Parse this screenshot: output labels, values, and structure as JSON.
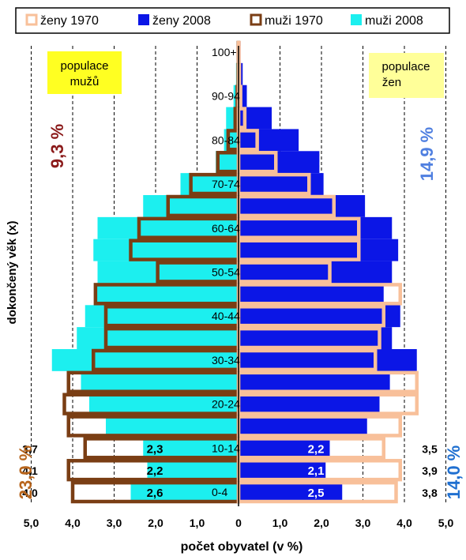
{
  "chart_data": {
    "type": "bar",
    "subtype": "population-pyramid",
    "xlabel": "počet obyvatel  (v %)",
    "ylabel": "dokončený věk (x)",
    "xlim": [
      -5,
      5
    ],
    "x_tick_labels": [
      "5,0",
      "4,0",
      "3,0",
      "2,0",
      "1,0",
      "0",
      "1,0",
      "2,0",
      "3,0",
      "4,0",
      "5,0"
    ],
    "x_ticks": [
      -5,
      -4,
      -3,
      -2,
      -1,
      0,
      1,
      2,
      3,
      4,
      5
    ],
    "legend_position": "top",
    "age_groups": [
      "0-4",
      "5-9",
      "10-14",
      "15-19",
      "20-24",
      "25-29",
      "30-34",
      "35-39",
      "40-44",
      "45-49",
      "50-54",
      "55-59",
      "60-64",
      "65-69",
      "70-74",
      "75-79",
      "80-84",
      "85-89",
      "90-94",
      "95-99",
      "100+"
    ],
    "age_labels_shown": [
      "0-4",
      "10-14",
      "20-24",
      "30-34",
      "40-44",
      "50-54",
      "60-64",
      "70-74",
      "80-84",
      "90-94",
      "100+"
    ],
    "series": [
      {
        "name": "ženy 1970",
        "sex": "female",
        "style": "outline",
        "color": "#f8c09a",
        "values": [
          3.8,
          3.9,
          3.5,
          3.9,
          4.3,
          4.3,
          3.3,
          3.4,
          3.5,
          3.9,
          2.2,
          2.9,
          2.9,
          2.3,
          1.7,
          0.9,
          0.45,
          0.15,
          0.05,
          0.02,
          0.01
        ]
      },
      {
        "name": "ženy 2008",
        "sex": "female",
        "style": "fill",
        "color": "#0b16e6",
        "values": [
          2.5,
          2.1,
          2.2,
          3.1,
          3.4,
          3.65,
          4.3,
          3.7,
          3.9,
          3.5,
          3.7,
          3.85,
          3.7,
          3.05,
          2.05,
          1.95,
          1.45,
          0.8,
          0.2,
          0.1,
          0.05
        ]
      },
      {
        "name": "muži 1970",
        "sex": "male",
        "style": "outline",
        "color": "#7a3e14",
        "values": [
          4.0,
          4.1,
          3.7,
          4.1,
          4.2,
          4.1,
          3.5,
          3.2,
          3.2,
          3.45,
          1.95,
          2.6,
          2.4,
          1.7,
          1.15,
          0.5,
          0.25,
          0.08,
          0.03,
          0.01,
          0.005
        ]
      },
      {
        "name": "muži 2008",
        "sex": "male",
        "style": "fill",
        "color": "#1cefef",
        "values": [
          2.6,
          2.2,
          2.3,
          3.2,
          3.6,
          3.8,
          4.5,
          3.9,
          3.7,
          3.45,
          3.4,
          3.5,
          3.4,
          2.3,
          1.4,
          0.55,
          0.35,
          0.3,
          0.12,
          0.06,
          0.02
        ]
      }
    ],
    "data_labels": {
      "male_2008": {
        "0-4": "2,6",
        "5-9": "2,2",
        "10-14": "2,3"
      },
      "male_1970": {
        "0-4": "4,0",
        "5-9": "4,1",
        "10-14": "3,7"
      },
      "female_2008": {
        "0-4": "2,5",
        "5-9": "2,1",
        "10-14": "2,2"
      },
      "female_1970": {
        "0-4": "3,8",
        "5-9": "3,9",
        "10-14": "3,5"
      }
    },
    "annotations": {
      "male_box": "populace\nmužů",
      "female_box": "populace\nžen",
      "male_old_pct": "9,3 %",
      "female_old_pct": "14,9 %",
      "male_young_pct": "23,0 %",
      "female_young_pct": "14,0 %"
    },
    "grid": true,
    "colors": {
      "male_old_pct": "#8b1a1a",
      "female_old_pct": "#4f7fe0",
      "male_young_pct": "#b8651c",
      "female_young_pct": "#1f6fd0",
      "box_fill": "#ffff22"
    }
  }
}
